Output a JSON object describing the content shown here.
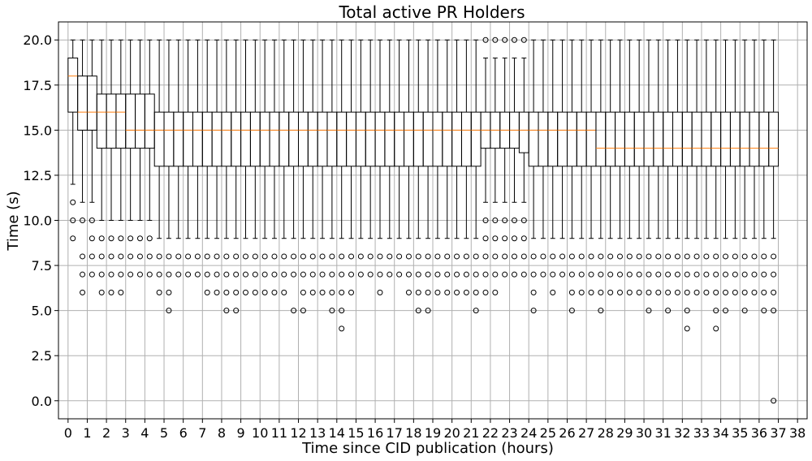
{
  "chart_data": {
    "type": "box",
    "title": "Total active PR Holders",
    "xlabel": "Time since CID publication (hours)",
    "ylabel": "Time (s)",
    "xlim": [
      -0.5,
      38.5
    ],
    "ylim": [
      -1.0,
      21.0
    ],
    "x_ticks": [
      0,
      1,
      2,
      3,
      4,
      5,
      6,
      7,
      8,
      9,
      10,
      11,
      12,
      13,
      14,
      15,
      16,
      17,
      18,
      19,
      20,
      21,
      22,
      23,
      24,
      25,
      26,
      27,
      28,
      29,
      30,
      31,
      32,
      33,
      34,
      35,
      36,
      37,
      38
    ],
    "y_ticks": [
      0.0,
      2.5,
      5.0,
      7.5,
      10.0,
      12.5,
      15.0,
      17.5,
      20.0
    ],
    "y_tick_labels": [
      "0.0",
      "2.5",
      "5.0",
      "7.5",
      "10.0",
      "12.5",
      "15.0",
      "17.5",
      "20.0"
    ],
    "grid": true,
    "box_width_hours": 0.5,
    "boxes": [
      {
        "x": 0.0,
        "q1": 16,
        "median": 18,
        "q3": 19,
        "whisker_low": 12,
        "whisker_high": 20,
        "fliers": [
          11,
          10,
          9
        ]
      },
      {
        "x": 0.5,
        "q1": 15,
        "median": 16,
        "q3": 18,
        "whisker_low": 11,
        "whisker_high": 20,
        "fliers": [
          10,
          8,
          7,
          6
        ]
      },
      {
        "x": 1.0,
        "q1": 15,
        "median": 16,
        "q3": 18,
        "whisker_low": 11,
        "whisker_high": 20,
        "fliers": [
          10,
          9,
          8,
          7
        ]
      },
      {
        "x": 1.5,
        "q1": 14,
        "median": 16,
        "q3": 17,
        "whisker_low": 10,
        "whisker_high": 20,
        "fliers": [
          9,
          8,
          7,
          6
        ]
      },
      {
        "x": 2.0,
        "q1": 14,
        "median": 16,
        "q3": 17,
        "whisker_low": 10,
        "whisker_high": 20,
        "fliers": [
          9,
          8,
          7,
          6
        ]
      },
      {
        "x": 2.5,
        "q1": 14,
        "median": 16,
        "q3": 17,
        "whisker_low": 10,
        "whisker_high": 20,
        "fliers": [
          9,
          8,
          7,
          6
        ]
      },
      {
        "x": 3.0,
        "q1": 14,
        "median": 15,
        "q3": 17,
        "whisker_low": 10,
        "whisker_high": 20,
        "fliers": [
          9,
          8,
          7
        ]
      },
      {
        "x": 3.5,
        "q1": 14,
        "median": 15,
        "q3": 17,
        "whisker_low": 10,
        "whisker_high": 20,
        "fliers": [
          9,
          8,
          7
        ]
      },
      {
        "x": 4.0,
        "q1": 14,
        "median": 15,
        "q3": 17,
        "whisker_low": 10,
        "whisker_high": 20,
        "fliers": [
          9,
          8,
          7
        ]
      },
      {
        "x": 4.5,
        "q1": 13,
        "median": 15,
        "q3": 16,
        "whisker_low": 9,
        "whisker_high": 20,
        "fliers": [
          8,
          7,
          6
        ]
      },
      {
        "x": 5.0,
        "q1": 13,
        "median": 15,
        "q3": 16,
        "whisker_low": 9,
        "whisker_high": 20,
        "fliers": [
          8,
          7,
          6,
          5
        ]
      },
      {
        "x": 5.5,
        "q1": 13,
        "median": 15,
        "q3": 16,
        "whisker_low": 9,
        "whisker_high": 20,
        "fliers": [
          8,
          7
        ]
      },
      {
        "x": 6.0,
        "q1": 13,
        "median": 15,
        "q3": 16,
        "whisker_low": 9,
        "whisker_high": 20,
        "fliers": [
          8,
          7
        ]
      },
      {
        "x": 6.5,
        "q1": 13,
        "median": 15,
        "q3": 16,
        "whisker_low": 9,
        "whisker_high": 20,
        "fliers": [
          8,
          7
        ]
      },
      {
        "x": 7.0,
        "q1": 13,
        "median": 15,
        "q3": 16,
        "whisker_low": 9,
        "whisker_high": 20,
        "fliers": [
          8,
          7,
          6
        ]
      },
      {
        "x": 7.5,
        "q1": 13,
        "median": 15,
        "q3": 16,
        "whisker_low": 9,
        "whisker_high": 20,
        "fliers": [
          8,
          7,
          6
        ]
      },
      {
        "x": 8.0,
        "q1": 13,
        "median": 15,
        "q3": 16,
        "whisker_low": 9,
        "whisker_high": 20,
        "fliers": [
          8,
          7,
          6,
          5
        ]
      },
      {
        "x": 8.5,
        "q1": 13,
        "median": 15,
        "q3": 16,
        "whisker_low": 9,
        "whisker_high": 20,
        "fliers": [
          8,
          7,
          6,
          5
        ]
      },
      {
        "x": 9.0,
        "q1": 13,
        "median": 15,
        "q3": 16,
        "whisker_low": 9,
        "whisker_high": 20,
        "fliers": [
          8,
          7,
          6
        ]
      },
      {
        "x": 9.5,
        "q1": 13,
        "median": 15,
        "q3": 16,
        "whisker_low": 9,
        "whisker_high": 20,
        "fliers": [
          8,
          7,
          6
        ]
      },
      {
        "x": 10.0,
        "q1": 13,
        "median": 15,
        "q3": 16,
        "whisker_low": 9,
        "whisker_high": 20,
        "fliers": [
          8,
          7,
          6
        ]
      },
      {
        "x": 10.5,
        "q1": 13,
        "median": 15,
        "q3": 16,
        "whisker_low": 9,
        "whisker_high": 20,
        "fliers": [
          8,
          7,
          6
        ]
      },
      {
        "x": 11.0,
        "q1": 13,
        "median": 15,
        "q3": 16,
        "whisker_low": 9,
        "whisker_high": 20,
        "fliers": [
          8,
          7,
          6
        ]
      },
      {
        "x": 11.5,
        "q1": 13,
        "median": 15,
        "q3": 16,
        "whisker_low": 9,
        "whisker_high": 20,
        "fliers": [
          8,
          7,
          5
        ]
      },
      {
        "x": 12.0,
        "q1": 13,
        "median": 15,
        "q3": 16,
        "whisker_low": 9,
        "whisker_high": 20,
        "fliers": [
          8,
          7,
          6,
          5
        ]
      },
      {
        "x": 12.5,
        "q1": 13,
        "median": 15,
        "q3": 16,
        "whisker_low": 9,
        "whisker_high": 20,
        "fliers": [
          8,
          7,
          6
        ]
      },
      {
        "x": 13.0,
        "q1": 13,
        "median": 15,
        "q3": 16,
        "whisker_low": 9,
        "whisker_high": 20,
        "fliers": [
          8,
          7,
          6
        ]
      },
      {
        "x": 13.5,
        "q1": 13,
        "median": 15,
        "q3": 16,
        "whisker_low": 9,
        "whisker_high": 20,
        "fliers": [
          8,
          7,
          6,
          5
        ]
      },
      {
        "x": 14.0,
        "q1": 13,
        "median": 15,
        "q3": 16,
        "whisker_low": 9,
        "whisker_high": 20,
        "fliers": [
          8,
          7,
          6,
          5,
          4
        ]
      },
      {
        "x": 14.5,
        "q1": 13,
        "median": 15,
        "q3": 16,
        "whisker_low": 9,
        "whisker_high": 20,
        "fliers": [
          8,
          7,
          6
        ]
      },
      {
        "x": 15.0,
        "q1": 13,
        "median": 15,
        "q3": 16,
        "whisker_low": 9,
        "whisker_high": 20,
        "fliers": [
          8,
          7
        ]
      },
      {
        "x": 15.5,
        "q1": 13,
        "median": 15,
        "q3": 16,
        "whisker_low": 9,
        "whisker_high": 20,
        "fliers": [
          8,
          7
        ]
      },
      {
        "x": 16.0,
        "q1": 13,
        "median": 15,
        "q3": 16,
        "whisker_low": 9,
        "whisker_high": 20,
        "fliers": [
          8,
          7,
          6
        ]
      },
      {
        "x": 16.5,
        "q1": 13,
        "median": 15,
        "q3": 16,
        "whisker_low": 9,
        "whisker_high": 20,
        "fliers": [
          8,
          7
        ]
      },
      {
        "x": 17.0,
        "q1": 13,
        "median": 15,
        "q3": 16,
        "whisker_low": 9,
        "whisker_high": 20,
        "fliers": [
          8,
          7
        ]
      },
      {
        "x": 17.5,
        "q1": 13,
        "median": 15,
        "q3": 16,
        "whisker_low": 9,
        "whisker_high": 20,
        "fliers": [
          8,
          7,
          6
        ]
      },
      {
        "x": 18.0,
        "q1": 13,
        "median": 15,
        "q3": 16,
        "whisker_low": 9,
        "whisker_high": 20,
        "fliers": [
          8,
          7,
          6,
          5
        ]
      },
      {
        "x": 18.5,
        "q1": 13,
        "median": 15,
        "q3": 16,
        "whisker_low": 9,
        "whisker_high": 20,
        "fliers": [
          8,
          7,
          6,
          5
        ]
      },
      {
        "x": 19.0,
        "q1": 13,
        "median": 15,
        "q3": 16,
        "whisker_low": 9,
        "whisker_high": 20,
        "fliers": [
          8,
          7,
          6
        ]
      },
      {
        "x": 19.5,
        "q1": 13,
        "median": 15,
        "q3": 16,
        "whisker_low": 9,
        "whisker_high": 20,
        "fliers": [
          8,
          7,
          6
        ]
      },
      {
        "x": 20.0,
        "q1": 13,
        "median": 15,
        "q3": 16,
        "whisker_low": 9,
        "whisker_high": 20,
        "fliers": [
          8,
          7,
          6
        ]
      },
      {
        "x": 20.5,
        "q1": 13,
        "median": 15,
        "q3": 16,
        "whisker_low": 9,
        "whisker_high": 20,
        "fliers": [
          8,
          7,
          6
        ]
      },
      {
        "x": 21.0,
        "q1": 13,
        "median": 15,
        "q3": 16,
        "whisker_low": 9,
        "whisker_high": 20,
        "fliers": [
          8,
          7,
          6,
          5
        ]
      },
      {
        "x": 21.5,
        "q1": 14,
        "median": 15,
        "q3": 16,
        "whisker_low": 11,
        "whisker_high": 19,
        "fliers": [
          20,
          10,
          9,
          8,
          7,
          6
        ]
      },
      {
        "x": 22.0,
        "q1": 14,
        "median": 15,
        "q3": 16,
        "whisker_low": 11,
        "whisker_high": 19,
        "fliers": [
          20,
          10,
          9,
          8,
          7,
          6
        ]
      },
      {
        "x": 22.5,
        "q1": 14,
        "median": 15,
        "q3": 16,
        "whisker_low": 11,
        "whisker_high": 19,
        "fliers": [
          20,
          10,
          9,
          8,
          7
        ]
      },
      {
        "x": 23.0,
        "q1": 14,
        "median": 15,
        "q3": 16,
        "whisker_low": 11,
        "whisker_high": 19,
        "fliers": [
          20,
          10,
          9,
          8,
          7
        ]
      },
      {
        "x": 23.5,
        "q1": 13.75,
        "median": 15,
        "q3": 16,
        "whisker_low": 11,
        "whisker_high": 19,
        "fliers": [
          20,
          10,
          9,
          8,
          7
        ]
      },
      {
        "x": 24.0,
        "q1": 13,
        "median": 15,
        "q3": 16,
        "whisker_low": 9,
        "whisker_high": 20,
        "fliers": [
          8,
          7,
          6,
          5
        ]
      },
      {
        "x": 24.5,
        "q1": 13,
        "median": 15,
        "q3": 16,
        "whisker_low": 9,
        "whisker_high": 20,
        "fliers": [
          8,
          7
        ]
      },
      {
        "x": 25.0,
        "q1": 13,
        "median": 15,
        "q3": 16,
        "whisker_low": 9,
        "whisker_high": 20,
        "fliers": [
          8,
          7,
          6
        ]
      },
      {
        "x": 25.5,
        "q1": 13,
        "median": 15,
        "q3": 16,
        "whisker_low": 9,
        "whisker_high": 20,
        "fliers": [
          8,
          7
        ]
      },
      {
        "x": 26.0,
        "q1": 13,
        "median": 15,
        "q3": 16,
        "whisker_low": 9,
        "whisker_high": 20,
        "fliers": [
          8,
          7,
          6,
          5
        ]
      },
      {
        "x": 26.5,
        "q1": 13,
        "median": 15,
        "q3": 16,
        "whisker_low": 9,
        "whisker_high": 20,
        "fliers": [
          8,
          7,
          6
        ]
      },
      {
        "x": 27.0,
        "q1": 13,
        "median": 15,
        "q3": 16,
        "whisker_low": 9,
        "whisker_high": 20,
        "fliers": [
          8,
          7,
          6
        ]
      },
      {
        "x": 27.5,
        "q1": 13,
        "median": 14,
        "q3": 16,
        "whisker_low": 9,
        "whisker_high": 20,
        "fliers": [
          8,
          7,
          6,
          5
        ]
      },
      {
        "x": 28.0,
        "q1": 13,
        "median": 14,
        "q3": 16,
        "whisker_low": 9,
        "whisker_high": 20,
        "fliers": [
          8,
          7,
          6
        ]
      },
      {
        "x": 28.5,
        "q1": 13,
        "median": 14,
        "q3": 16,
        "whisker_low": 9,
        "whisker_high": 20,
        "fliers": [
          8,
          7,
          6
        ]
      },
      {
        "x": 29.0,
        "q1": 13,
        "median": 14,
        "q3": 16,
        "whisker_low": 9,
        "whisker_high": 20,
        "fliers": [
          8,
          7,
          6
        ]
      },
      {
        "x": 29.5,
        "q1": 13,
        "median": 14,
        "q3": 16,
        "whisker_low": 9,
        "whisker_high": 20,
        "fliers": [
          8,
          7,
          6
        ]
      },
      {
        "x": 30.0,
        "q1": 13,
        "median": 14,
        "q3": 16,
        "whisker_low": 9,
        "whisker_high": 20,
        "fliers": [
          8,
          7,
          6,
          5
        ]
      },
      {
        "x": 30.5,
        "q1": 13,
        "median": 14,
        "q3": 16,
        "whisker_low": 9,
        "whisker_high": 20,
        "fliers": [
          8,
          7,
          6
        ]
      },
      {
        "x": 31.0,
        "q1": 13,
        "median": 14,
        "q3": 16,
        "whisker_low": 9,
        "whisker_high": 20,
        "fliers": [
          8,
          7,
          6,
          5
        ]
      },
      {
        "x": 31.5,
        "q1": 13,
        "median": 14,
        "q3": 16,
        "whisker_low": 9,
        "whisker_high": 20,
        "fliers": [
          8,
          7,
          6
        ]
      },
      {
        "x": 32.0,
        "q1": 13,
        "median": 14,
        "q3": 16,
        "whisker_low": 9,
        "whisker_high": 20,
        "fliers": [
          8,
          7,
          6,
          5,
          4
        ]
      },
      {
        "x": 32.5,
        "q1": 13,
        "median": 14,
        "q3": 16,
        "whisker_low": 9,
        "whisker_high": 20,
        "fliers": [
          8,
          7,
          6
        ]
      },
      {
        "x": 33.0,
        "q1": 13,
        "median": 14,
        "q3": 16,
        "whisker_low": 9,
        "whisker_high": 20,
        "fliers": [
          8,
          7,
          6
        ]
      },
      {
        "x": 33.5,
        "q1": 13,
        "median": 14,
        "q3": 16,
        "whisker_low": 9,
        "whisker_high": 20,
        "fliers": [
          8,
          7,
          6,
          5,
          4
        ]
      },
      {
        "x": 34.0,
        "q1": 13,
        "median": 14,
        "q3": 16,
        "whisker_low": 9,
        "whisker_high": 20,
        "fliers": [
          8,
          7,
          6,
          5
        ]
      },
      {
        "x": 34.5,
        "q1": 13,
        "median": 14,
        "q3": 16,
        "whisker_low": 9,
        "whisker_high": 20,
        "fliers": [
          8,
          7,
          6
        ]
      },
      {
        "x": 35.0,
        "q1": 13,
        "median": 14,
        "q3": 16,
        "whisker_low": 9,
        "whisker_high": 20,
        "fliers": [
          8,
          7,
          6,
          5
        ]
      },
      {
        "x": 35.5,
        "q1": 13,
        "median": 14,
        "q3": 16,
        "whisker_low": 9,
        "whisker_high": 20,
        "fliers": [
          8,
          7,
          6
        ]
      },
      {
        "x": 36.0,
        "q1": 13,
        "median": 14,
        "q3": 16,
        "whisker_low": 9,
        "whisker_high": 20,
        "fliers": [
          8,
          7,
          6,
          5
        ]
      },
      {
        "x": 36.5,
        "q1": 13,
        "median": 14,
        "q3": 16,
        "whisker_low": 9,
        "whisker_high": 20,
        "fliers": [
          8,
          7,
          6,
          5,
          0
        ]
      }
    ],
    "colors": {
      "box_edge": "#000000",
      "median": "#ff7f0e",
      "grid": "#b0b0b0",
      "background": "#ffffff"
    }
  }
}
